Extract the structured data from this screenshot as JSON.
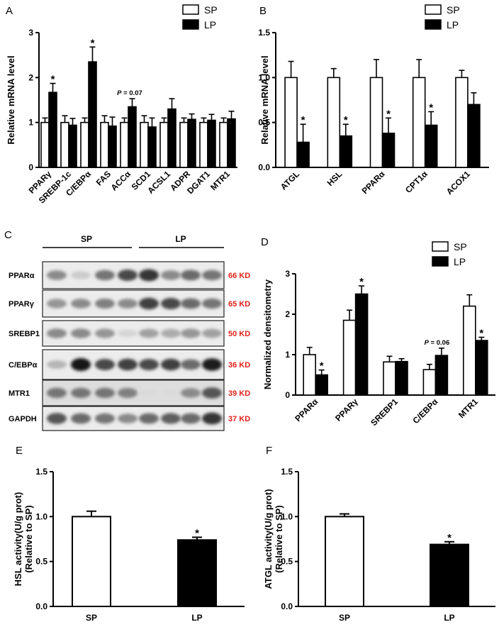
{
  "chart_data": [
    {
      "panel": "A",
      "type": "bar",
      "ylabel": "Relative mRNA level",
      "ylim": [
        0,
        3
      ],
      "yticks": [
        0,
        1,
        2,
        3
      ],
      "legend": [
        "SP",
        "LP"
      ],
      "categories": [
        "PPARγ",
        "SREBP-1c",
        "C/EBPα",
        "FAS",
        "ACCα",
        "SCD1",
        "ACSL1",
        "ADPR",
        "DGAT1",
        "MTR1"
      ],
      "series": [
        {
          "name": "SP",
          "values": [
            1.0,
            1.0,
            1.0,
            1.0,
            1.0,
            1.0,
            1.0,
            1.0,
            1.0,
            1.0
          ],
          "errors": [
            0.1,
            0.15,
            0.1,
            0.15,
            0.1,
            0.15,
            0.1,
            0.1,
            0.1,
            0.1
          ]
        },
        {
          "name": "LP",
          "values": [
            1.67,
            0.94,
            2.35,
            0.92,
            1.35,
            0.9,
            1.3,
            1.07,
            1.05,
            1.08
          ],
          "errors": [
            0.2,
            0.15,
            0.33,
            0.2,
            0.18,
            0.2,
            0.23,
            0.12,
            0.13,
            0.17
          ]
        }
      ],
      "stars": [
        "LP-0",
        "LP-2"
      ],
      "annotation": {
        "index": 4,
        "text": "P = 0.07"
      }
    },
    {
      "panel": "B",
      "type": "bar",
      "ylabel": "Relative mRNA level",
      "ylim": [
        0,
        1.5
      ],
      "yticks": [
        0.0,
        0.5,
        1.0,
        1.5
      ],
      "legend": [
        "SP",
        "LP"
      ],
      "categories": [
        "ATGL",
        "HSL",
        "PPARα",
        "CPT1α",
        "ACOX1"
      ],
      "series": [
        {
          "name": "SP",
          "values": [
            1.0,
            1.0,
            1.0,
            1.0,
            1.0
          ],
          "errors": [
            0.18,
            0.1,
            0.2,
            0.2,
            0.08
          ]
        },
        {
          "name": "LP",
          "values": [
            0.28,
            0.35,
            0.38,
            0.47,
            0.7
          ],
          "errors": [
            0.2,
            0.13,
            0.17,
            0.15,
            0.13
          ]
        }
      ],
      "stars": [
        "LP-0",
        "LP-1",
        "LP-2",
        "LP-3"
      ]
    },
    {
      "panel": "D",
      "type": "bar",
      "ylabel": "Normalized densitometry",
      "ylim": [
        0,
        3
      ],
      "yticks": [
        0,
        1,
        2,
        3
      ],
      "legend": [
        "SP",
        "LP"
      ],
      "categories": [
        "PPARα",
        "PPARγ",
        "SREBP1",
        "C/EBPα",
        "MTR1"
      ],
      "series": [
        {
          "name": "SP",
          "values": [
            1.0,
            1.85,
            0.82,
            0.63,
            2.2
          ],
          "errors": [
            0.18,
            0.25,
            0.14,
            0.13,
            0.28
          ]
        },
        {
          "name": "LP",
          "values": [
            0.5,
            2.5,
            0.83,
            0.98,
            1.35
          ],
          "errors": [
            0.12,
            0.2,
            0.07,
            0.18,
            0.08
          ]
        }
      ],
      "stars": [
        "LP-0",
        "LP-1",
        "LP-4"
      ],
      "annotation": {
        "index": 3,
        "text": "P = 0.06"
      }
    },
    {
      "panel": "E",
      "type": "bar",
      "ylabel": "HSL activity(U/g prot) (Relative to SP)",
      "ylim": [
        0,
        1.5
      ],
      "yticks": [
        0.0,
        0.5,
        1.0,
        1.5
      ],
      "categories": [
        "SP",
        "LP"
      ],
      "values": [
        1.0,
        0.74
      ],
      "errors": [
        0.06,
        0.03
      ],
      "stars": [
        1
      ]
    },
    {
      "panel": "F",
      "type": "bar",
      "ylabel": "ATGL activity(U/g prot) (Relative to SP)",
      "ylim": [
        0,
        1.5
      ],
      "yticks": [
        0.0,
        0.5,
        1.0,
        1.5
      ],
      "categories": [
        "SP",
        "LP"
      ],
      "values": [
        1.0,
        0.69
      ],
      "errors": [
        0.03,
        0.03
      ],
      "stars": [
        1
      ]
    }
  ],
  "panel_labels": {
    "a": "A",
    "b": "B",
    "c": "C",
    "d": "D",
    "e": "E",
    "f": "F"
  },
  "blot": {
    "group_sp": "SP",
    "group_lp": "LP",
    "rows": [
      {
        "name": "PPARα",
        "kd": "66 KD"
      },
      {
        "name": "PPARγ",
        "kd": "65 KD"
      },
      {
        "name": "SREBP1",
        "kd": "50 KD"
      },
      {
        "name": "C/EBPα",
        "kd": "36 KD"
      },
      {
        "name": "MTR1",
        "kd": "39 KD"
      },
      {
        "name": "GAPDH",
        "kd": "37 KD"
      }
    ]
  },
  "colors": {
    "sp_fill": "#ffffff",
    "lp_fill": "#000000",
    "kd_text": "#e2231a"
  },
  "star_symbol": "*"
}
